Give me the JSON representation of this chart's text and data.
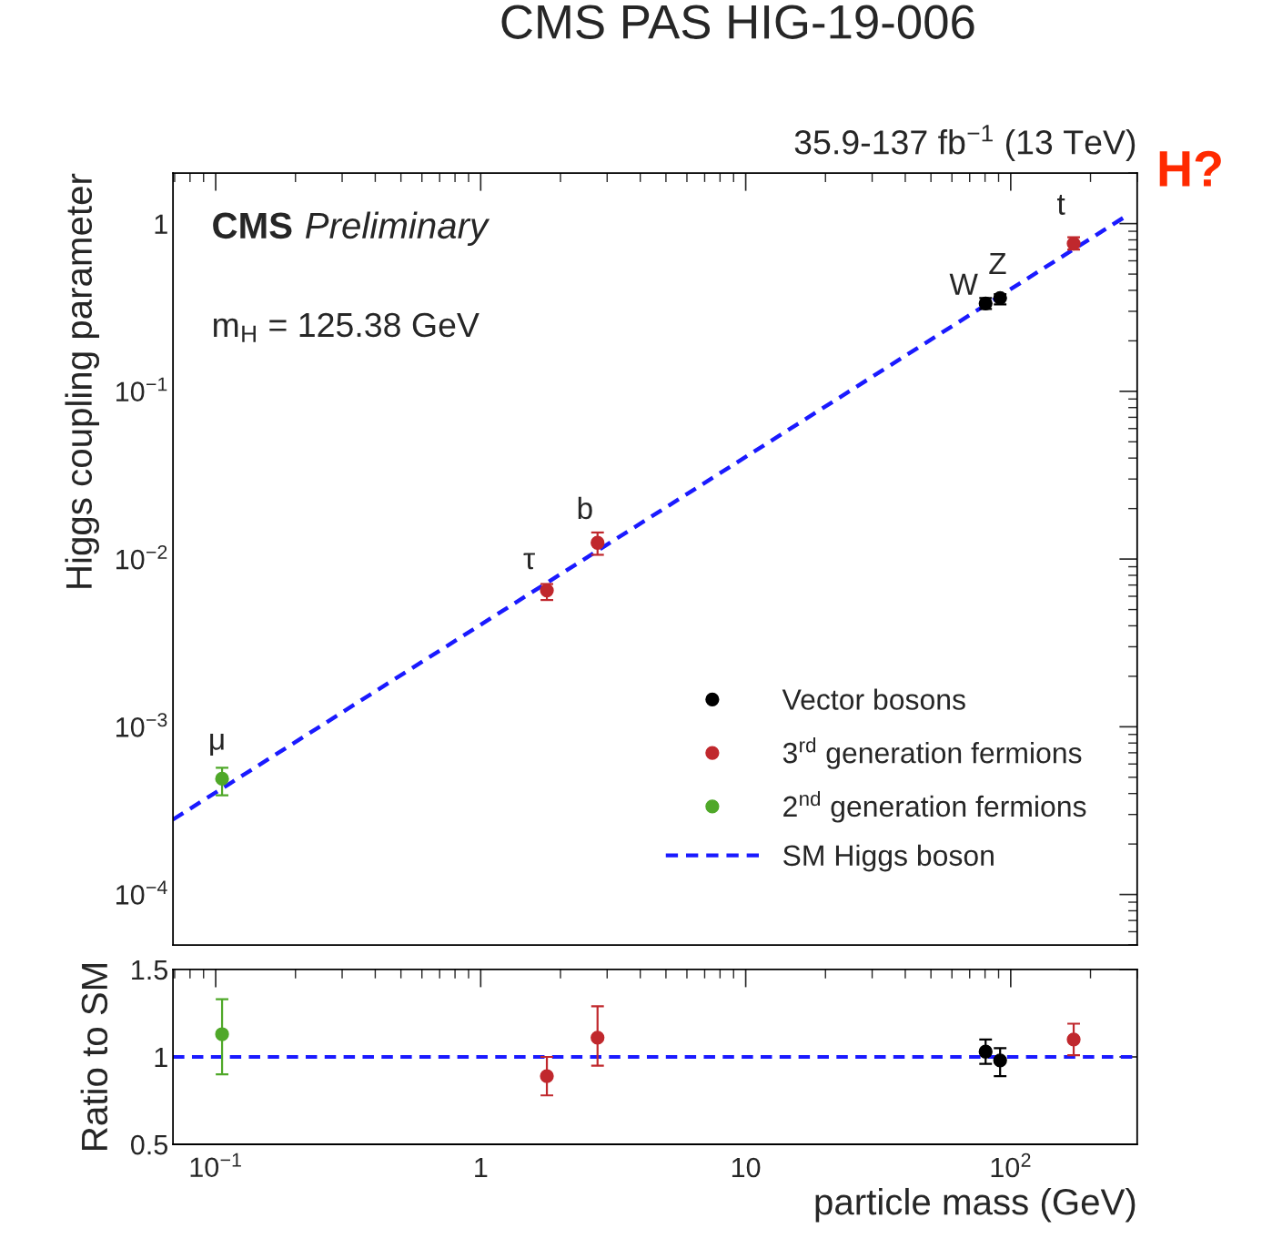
{
  "chart_data": [
    {
      "type": "scatter",
      "title": "CMS PAS HIG-19-006",
      "ylabel": "Higgs coupling parameter",
      "log": "xy",
      "grid": false,
      "legend": "lower right",
      "marker": "circle",
      "tick_labels": "y",
      "xlim": [
        0.069,
        300
      ],
      "ylim": [
        5e-05,
        2
      ],
      "yticks": [
        {
          "value": 0.0001,
          "label": "10$^{−4}$"
        },
        {
          "value": 0.001,
          "label": "10$^{−3}$"
        },
        {
          "value": 0.01,
          "label": "10$^{−2}$"
        },
        {
          "value": 0.1,
          "label": "10$^{−1}$"
        },
        1
      ],
      "xticks": [
        {
          "value": 0.1,
          "label": null
        },
        {
          "value": 1,
          "label": null
        },
        {
          "value": 10,
          "label": null
        },
        {
          "value": 100,
          "label": null
        }
      ],
      "series": [
        {
          "name": "Vector bosons",
          "color": "#000000",
          "x": [
            80.4,
            91.2
          ],
          "values": [
            0.334,
            0.36
          ],
          "errors": [
            [
              0.31,
              0.36
            ],
            [
              0.33,
              0.38
            ]
          ]
        },
        {
          "name": "3$^{rd}$ generation fermions",
          "color": "#c0282d",
          "x": [
            1.777,
            2.76,
            172.8
          ],
          "values": [
            0.0065,
            0.0125,
            0.76
          ],
          "errors": [
            [
              0.0057,
              0.0071
            ],
            [
              0.0106,
              0.0144
            ],
            [
              0.7,
              0.83
            ]
          ]
        },
        {
          "name": "2$^{nd}$ generation fermions",
          "color": "#4fa829",
          "x": [
            0.1057
          ],
          "values": [
            0.00049
          ],
          "errors": [
            [
              0.00039,
              0.00057
            ]
          ]
        },
        {
          "name": "SM Higgs boson",
          "type": "line",
          "color": "#1a1aff",
          "line_style": "dashed",
          "marker": "none",
          "x": [
            0.069,
            280
          ],
          "values": [
            0.00028,
            1.14
          ]
        }
      ],
      "annotations": [
        "CMS Preliminary",
        "m$_{H}$ = 125.38 GeV",
        "35.9-137 fb$^{−1}$ (13 TeV)",
        "H?",
        {
          "text": "μ",
          "x": 0.1057,
          "y": 0.00049
        },
        {
          "text": "τ",
          "x": 1.777,
          "y": 0.0065
        },
        {
          "text": "b",
          "x": 2.76,
          "y": 0.0125
        },
        {
          "text": "W",
          "x": 80.4,
          "y": 0.334
        },
        {
          "text": "Z",
          "x": 91.2,
          "y": 0.36
        },
        {
          "text": "t",
          "x": 172.8,
          "y": 0.76
        }
      ]
    },
    {
      "type": "scatter",
      "xlabel": "particle mass (GeV)",
      "ylabel": "Ratio to SM",
      "log": "x",
      "grid": false,
      "marker": "circle",
      "xlim": [
        0.069,
        300
      ],
      "ylim": [
        0.5,
        1.5
      ],
      "yticks": [
        0.5,
        1,
        1.5
      ],
      "xticks": [
        {
          "value": 0.1,
          "label": "10$^{−1}$"
        },
        1,
        10,
        {
          "value": 100,
          "label": "10$^{2}$"
        }
      ],
      "series": [
        {
          "color": "#000000",
          "x": [
            80.4,
            91.2
          ],
          "values": [
            1.03,
            0.98
          ],
          "errors": [
            [
              0.96,
              1.1
            ],
            [
              0.89,
              1.05
            ]
          ]
        },
        {
          "color": "#c0282d",
          "x": [
            1.777,
            2.76,
            172.8
          ],
          "values": [
            0.89,
            1.11,
            1.1
          ],
          "errors": [
            [
              0.78,
              1.0
            ],
            [
              0.95,
              1.29
            ],
            [
              1.01,
              1.19
            ]
          ]
        },
        {
          "color": "#4fa829",
          "x": [
            0.1057
          ],
          "values": [
            1.13
          ],
          "errors": [
            [
              0.9,
              1.33
            ]
          ]
        }
      ],
      "ref_lines": [
        {
          "axis": "y",
          "value": 1,
          "color": "#1a1aff",
          "line_style": "dashed"
        }
      ]
    }
  ]
}
